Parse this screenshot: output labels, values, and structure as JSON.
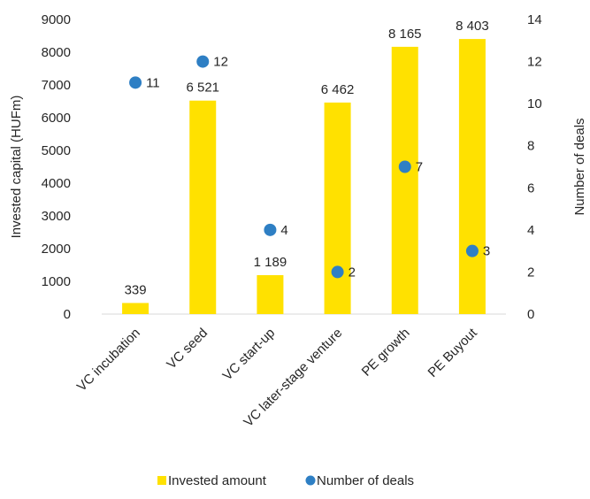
{
  "chart_data": {
    "type": "bar",
    "categories": [
      "VC incubation",
      "VC seed",
      "VC start-up",
      "VC later-stage venture",
      "PE growth",
      "PE Buyout"
    ],
    "series": [
      {
        "name": "Invested amount",
        "type": "bar",
        "axis": "left",
        "color": "#FFE100",
        "values": [
          339,
          6521,
          1189,
          6462,
          8165,
          8403
        ],
        "labels": [
          "339",
          "6 521",
          "1 189",
          "6 462",
          "8 165",
          "8 403"
        ]
      },
      {
        "name": "Number of deals",
        "type": "scatter",
        "axis": "right",
        "color": "#2E7FC4",
        "values": [
          11,
          12,
          4,
          2,
          7,
          3
        ],
        "labels": [
          "11",
          "12",
          "4",
          "2",
          "7",
          "3"
        ]
      }
    ],
    "y_left": {
      "label": "Invested capital (HUFm)",
      "range": [
        0,
        9000
      ],
      "ticks": [
        0,
        1000,
        2000,
        3000,
        4000,
        5000,
        6000,
        7000,
        8000,
        9000
      ]
    },
    "y_right": {
      "label": "Number of deals",
      "range": [
        0,
        14
      ],
      "ticks": [
        0,
        2,
        4,
        6,
        8,
        10,
        12,
        14
      ]
    },
    "grid": false,
    "legend": "bottom"
  }
}
